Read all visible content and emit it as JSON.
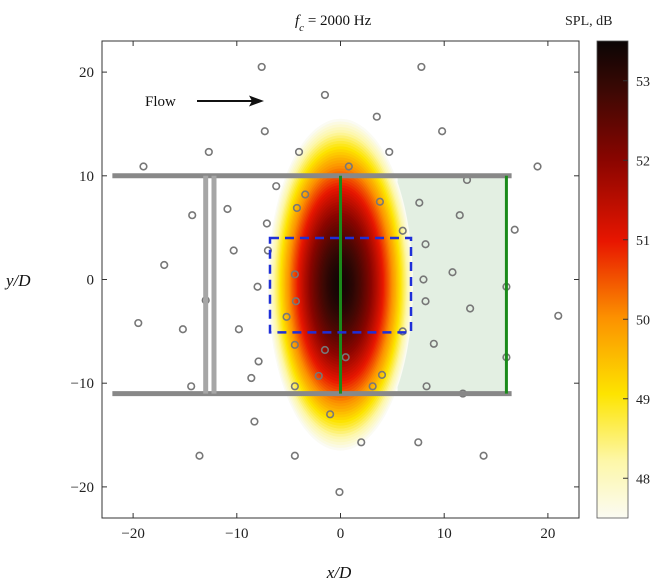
{
  "chart_data": {
    "type": "heatmap",
    "title_var": "f",
    "title_sub": "c",
    "title_rest": " = 2000 Hz",
    "colorbar_label": "SPL, dB",
    "colorbar_ticks": [
      48,
      49,
      50,
      51,
      52,
      53
    ],
    "colorbar_range": [
      47.5,
      53.5
    ],
    "xlabel": "x/D",
    "ylabel": "y/D",
    "xlim": [
      -23,
      23
    ],
    "ylim": [
      -23,
      23
    ],
    "xticks": [
      -20,
      -10,
      0,
      10,
      20
    ],
    "yticks": [
      -20,
      -10,
      0,
      10,
      20
    ],
    "tick_labels_x": [
      "−20",
      "−10",
      "0",
      "10",
      "20"
    ],
    "tick_labels_y": [
      "−20",
      "−10",
      "0",
      "10",
      "20"
    ],
    "flow_label": "Flow",
    "source_map": {
      "center": [
        0,
        -0.5
      ],
      "half_width_x": 7,
      "half_height_y": 16,
      "peak_db": 53.4,
      "edge_db": 47.5
    },
    "walls_y": [
      10,
      -11
    ],
    "wall_x_range": [
      -22,
      16.5
    ],
    "vertical_bars": {
      "gray": [
        -13,
        -12.2
      ],
      "green": [
        0,
        16
      ]
    },
    "green_region": {
      "x": [
        5.5,
        16
      ],
      "y": [
        -11,
        10
      ]
    },
    "dashed_rect": {
      "x": [
        -6.8,
        6.8
      ],
      "y": [
        -5.1,
        4
      ]
    },
    "microphones": [
      [
        -7.6,
        20.5
      ],
      [
        -1.5,
        17.8
      ],
      [
        7.8,
        20.5
      ],
      [
        -7.3,
        14.3
      ],
      [
        3.5,
        15.7
      ],
      [
        9.8,
        14.3
      ],
      [
        -12.7,
        12.3
      ],
      [
        -4,
        12.3
      ],
      [
        4.7,
        12.3
      ],
      [
        -19,
        10.9
      ],
      [
        0.8,
        10.9
      ],
      [
        12.2,
        9.6
      ],
      [
        19,
        10.9
      ],
      [
        -3.4,
        8.2
      ],
      [
        -6.2,
        9
      ],
      [
        3.8,
        7.5
      ],
      [
        7.6,
        7.4
      ],
      [
        -10.9,
        6.8
      ],
      [
        -4.2,
        6.9
      ],
      [
        -14.3,
        6.2
      ],
      [
        11.5,
        6.2
      ],
      [
        -7.1,
        5.4
      ],
      [
        6,
        4.7
      ],
      [
        16.8,
        4.8
      ],
      [
        -10.3,
        2.8
      ],
      [
        -7,
        2.8
      ],
      [
        8.2,
        3.4
      ],
      [
        -17,
        1.4
      ],
      [
        -4.4,
        0.5
      ],
      [
        10.8,
        0.7
      ],
      [
        -8,
        -0.7
      ],
      [
        8,
        0
      ],
      [
        16,
        -0.7
      ],
      [
        -13,
        -2
      ],
      [
        -4.3,
        -2.1
      ],
      [
        8.2,
        -2.1
      ],
      [
        -5.2,
        -3.6
      ],
      [
        12.5,
        -2.8
      ],
      [
        -19.5,
        -4.2
      ],
      [
        -15.2,
        -4.8
      ],
      [
        -9.8,
        -4.8
      ],
      [
        6,
        -5
      ],
      [
        21,
        -3.5
      ],
      [
        -4.4,
        -6.3
      ],
      [
        9,
        -6.2
      ],
      [
        -1.5,
        -6.8
      ],
      [
        -7.9,
        -7.9
      ],
      [
        0.5,
        -7.5
      ],
      [
        16,
        -7.5
      ],
      [
        -8.6,
        -9.5
      ],
      [
        -2.1,
        -9.3
      ],
      [
        4,
        -9.2
      ],
      [
        -14.4,
        -10.3
      ],
      [
        -4.4,
        -10.3
      ],
      [
        3.1,
        -10.3
      ],
      [
        8.3,
        -10.3
      ],
      [
        11.8,
        -11
      ],
      [
        -1,
        -13
      ],
      [
        -8.3,
        -13.7
      ],
      [
        2,
        -15.7
      ],
      [
        7.5,
        -15.7
      ],
      [
        -13.6,
        -17
      ],
      [
        -4.4,
        -17
      ],
      [
        13.8,
        -17
      ],
      [
        -0.1,
        -20.5
      ]
    ],
    "colors": {
      "wall": "#888888",
      "gray_bar": "#a6a6a6",
      "green": "#1a8a1a",
      "green_fill": "#e3efe2",
      "dashed": "#1f2fd8",
      "mic": "#777777"
    }
  }
}
